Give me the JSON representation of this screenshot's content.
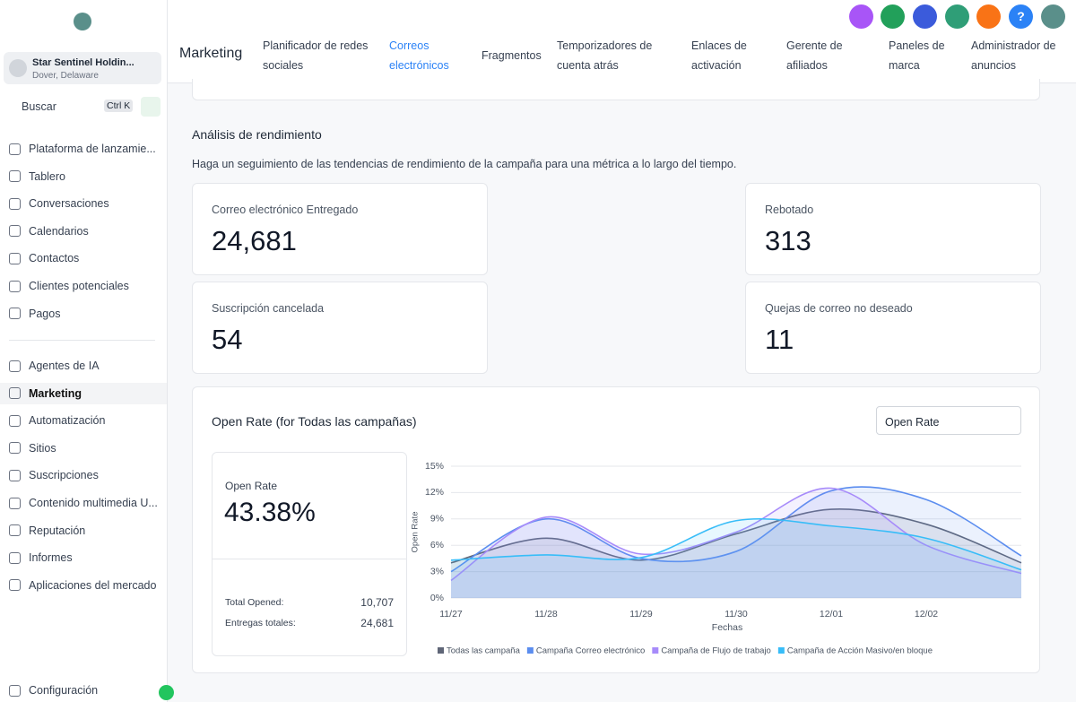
{
  "sidebar": {
    "account": {
      "name": "Star Sentinel Holdin...",
      "location": "Dover, Delaware"
    },
    "search": {
      "placeholder": "Buscar",
      "shortcut": "Ctrl K"
    },
    "items": [
      "Plataforma de lanzamie...",
      "Tablero",
      "Conversaciones",
      "Calendarios",
      "Contactos",
      "Clientes potenciales",
      "Pagos"
    ],
    "items2": [
      "Agentes de IA",
      "Marketing",
      "Automatización",
      "Sitios",
      "Suscripciones",
      "Contenido multimedia U...",
      "Reputación",
      "Informes",
      "Aplicaciones del mercado"
    ],
    "settings": "Configuración"
  },
  "header": {
    "title": "Marketing",
    "tabs": [
      "Planificador de redes sociales",
      "Correos electrónicos",
      "Fragmentos",
      "Temporizadores de cuenta atrás",
      "Enlaces de activación",
      "Gerente de afiliados",
      "Paneles de marca",
      "Administrador de anuncios"
    ],
    "help": "?"
  },
  "section": {
    "title": "Análisis de rendimiento",
    "description": "Haga un seguimiento de las tendencias de rendimiento de la campaña para una métrica a lo largo del tiempo."
  },
  "metrics": [
    {
      "label": "Correo electrónico Entregado",
      "value": "24,681"
    },
    {
      "label": "Rebotado",
      "value": "313"
    },
    {
      "label": "Suscripción cancelada",
      "value": "54"
    },
    {
      "label": "Quejas de correo no deseado",
      "value": "11"
    }
  ],
  "panel": {
    "title": "Open Rate (for Todas las campañas)",
    "dropdown": "Open Rate",
    "card": {
      "label": "Open Rate",
      "value": "43.38%",
      "rows": [
        [
          "Total Opened:",
          "10,707"
        ],
        [
          "Entregas totales:",
          "24,681"
        ]
      ]
    }
  },
  "chart_data": {
    "type": "line",
    "x_label": "Fechas",
    "y_label": "Open Rate",
    "categories": [
      "11/27",
      "11/28",
      "11/29",
      "11/30",
      "12/01",
      "12/02",
      null
    ],
    "ylim": [
      0,
      15
    ],
    "yticks": [
      {
        "value": 0,
        "label": "0%"
      },
      {
        "value": 3,
        "label": "3%"
      },
      {
        "value": 6,
        "label": "6%"
      },
      {
        "value": 9,
        "label": "9%"
      },
      {
        "value": 12,
        "label": "12%"
      },
      {
        "value": 15,
        "label": "15%"
      }
    ],
    "grid": true,
    "series": [
      {
        "name": "Todas las campaña",
        "color": "#5f6677",
        "values": [
          4.0,
          6.8,
          4.3,
          7.3,
          10.1,
          8.4,
          4.0
        ]
      },
      {
        "name": "Campaña Correo electrónico",
        "color": "#5b8def",
        "values": [
          3.0,
          9.0,
          4.5,
          5.3,
          12.2,
          11.2,
          4.8
        ]
      },
      {
        "name": "Campaña de Flujo de trabajo",
        "color": "#a78bfa",
        "values": [
          2.0,
          9.2,
          5.0,
          7.5,
          12.5,
          6.0,
          2.8
        ]
      },
      {
        "name": "Campaña de Acción Masivo/en bloque",
        "color": "#38bdf8",
        "values": [
          4.3,
          4.9,
          4.6,
          8.8,
          8.2,
          6.8,
          3.2
        ]
      }
    ]
  }
}
